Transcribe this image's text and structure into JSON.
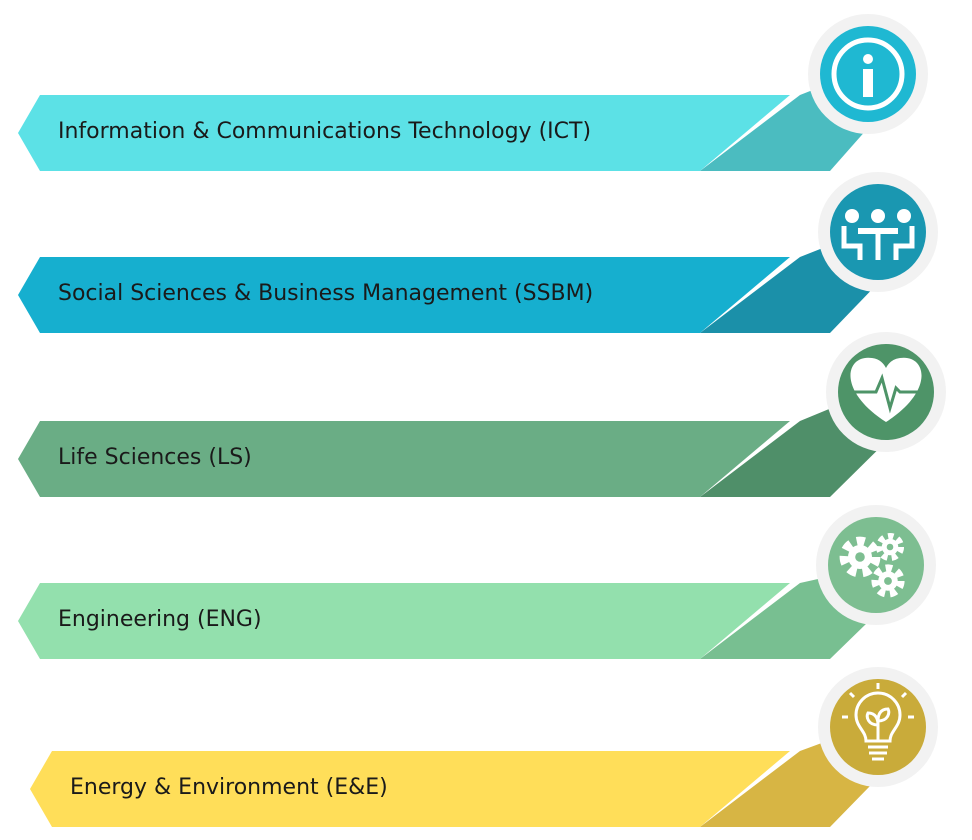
{
  "items": [
    {
      "label": "Information & Communications Technology (ICT)"
    },
    {
      "label": "Social Sciences & Business Management (SSBM)"
    },
    {
      "label": "Life Sciences (LS)"
    },
    {
      "label": "Engineering (ENG)"
    },
    {
      "label": "Energy & Environment (E&E)"
    }
  ]
}
